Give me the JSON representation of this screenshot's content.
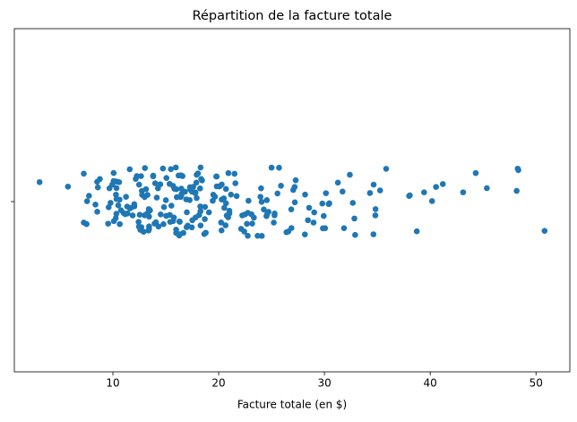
{
  "chart_data": {
    "type": "strip",
    "title": "Répartition de la facture totale",
    "x_label": "Facture totale (en $)",
    "color": "#1f77b4",
    "xlim": [
      0.683,
      53.197
    ],
    "xticks": [
      10,
      20,
      30,
      40,
      50
    ],
    "values": [
      16.99,
      10.34,
      21.01,
      23.68,
      24.59,
      25.29,
      8.77,
      26.88,
      15.04,
      14.78,
      10.27,
      35.26,
      15.42,
      18.43,
      14.83,
      21.58,
      10.33,
      16.29,
      16.97,
      20.65,
      17.92,
      20.29,
      15.77,
      39.42,
      19.82,
      17.81,
      13.37,
      12.69,
      21.7,
      19.65,
      9.55,
      18.35,
      15.06,
      20.69,
      17.78,
      24.06,
      16.31,
      16.93,
      18.69,
      31.27,
      16.04,
      17.46,
      13.94,
      9.68,
      30.4,
      18.29,
      22.23,
      32.4,
      28.55,
      18.04,
      12.54,
      10.29,
      34.81,
      9.94,
      25.56,
      19.49,
      38.01,
      26.41,
      11.24,
      48.27,
      20.29,
      13.81,
      11.02,
      18.29,
      17.59,
      20.08,
      16.45,
      3.07,
      20.23,
      15.01,
      12.02,
      17.07,
      26.86,
      25.28,
      14.73,
      10.51,
      17.92,
      27.2,
      22.76,
      17.29,
      19.44,
      16.66,
      10.07,
      32.68,
      15.98,
      34.83,
      13.03,
      18.28,
      24.71,
      21.16,
      28.97,
      22.49,
      5.75,
      16.32,
      22.75,
      40.17,
      27.28,
      12.03,
      21.01,
      12.46,
      11.35,
      15.38,
      44.3,
      22.42,
      20.92,
      15.36,
      20.49,
      25.21,
      18.24,
      14.31,
      14.0,
      7.25,
      38.07,
      23.95,
      25.71,
      17.31,
      29.93,
      10.65,
      12.43,
      24.08,
      11.69,
      13.42,
      14.26,
      15.95,
      12.48,
      29.8,
      8.52,
      14.52,
      11.38,
      22.82,
      19.08,
      20.27,
      11.17,
      12.26,
      18.26,
      8.51,
      10.33,
      14.15,
      16.0,
      13.16,
      17.47,
      34.3,
      41.19,
      27.05,
      16.43,
      8.35,
      18.64,
      11.87,
      9.78,
      7.51,
      14.07,
      13.13,
      17.26,
      24.55,
      19.77,
      29.85,
      48.17,
      25.0,
      13.39,
      16.49,
      21.5,
      12.66,
      16.21,
      13.81,
      17.51,
      24.52,
      20.76,
      31.71,
      10.59,
      10.63,
      50.81,
      15.81,
      7.25,
      31.85,
      16.82,
      32.9,
      17.89,
      14.48,
      9.6,
      34.63,
      34.65,
      23.33,
      45.35,
      23.17,
      40.55,
      20.69,
      20.9,
      30.46,
      18.15,
      23.1,
      15.69,
      19.81,
      28.44,
      15.48,
      16.58,
      7.56,
      10.34,
      43.11,
      13.0,
      13.51,
      18.71,
      12.74,
      13.0,
      16.4,
      20.53,
      16.47,
      26.59,
      38.73,
      24.27,
      12.76,
      30.06,
      25.89,
      48.33,
      13.27,
      28.17,
      12.9,
      28.15,
      11.59,
      7.74,
      30.14,
      12.16,
      13.42,
      8.58,
      15.98,
      13.42,
      16.27,
      10.09,
      20.45,
      13.28,
      22.12,
      24.01,
      15.69,
      11.61,
      10.77,
      15.53,
      10.07,
      12.6,
      32.83,
      35.83,
      29.03,
      27.18,
      22.67,
      17.82,
      18.78
    ]
  }
}
